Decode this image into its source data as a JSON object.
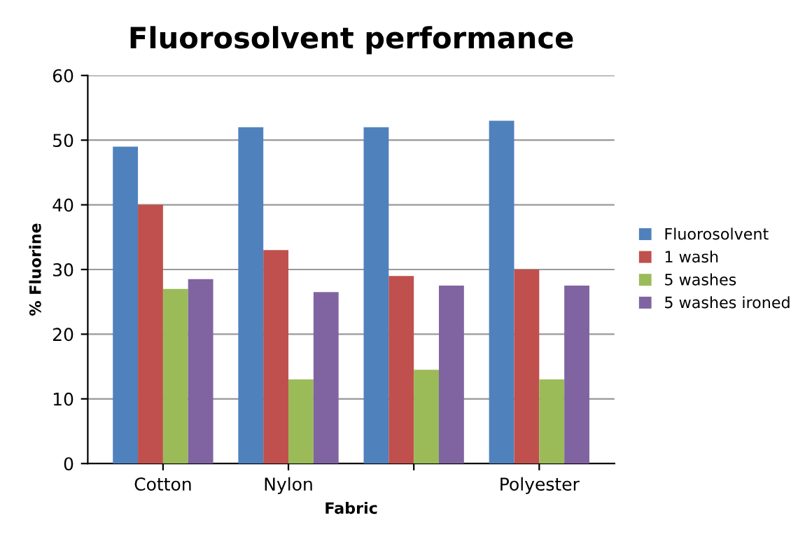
{
  "chart_data": {
    "type": "bar",
    "title": "Fluorosolvent performance",
    "xlabel": "Fabric",
    "ylabel": "% Fluorine",
    "categories": [
      "Cotton",
      "Nylon",
      null,
      "Polyester"
    ],
    "series": [
      {
        "name": "Fluorosolvent",
        "color": "#4f81bd",
        "values": [
          49,
          52,
          52,
          53
        ]
      },
      {
        "name": "1 wash",
        "color": "#c0504d",
        "values": [
          40,
          33,
          29,
          30
        ]
      },
      {
        "name": "5 washes",
        "color": "#9bbb59",
        "values": [
          27,
          13,
          14.5,
          13
        ]
      },
      {
        "name": "5 washes ironed",
        "color": "#8064a2",
        "values": [
          28.5,
          26.5,
          27.5,
          27.5
        ]
      }
    ],
    "ylim": [
      0,
      60
    ],
    "yticks": [
      0,
      10,
      20,
      30,
      40,
      50,
      60
    ],
    "grid": "y",
    "legend": "right"
  }
}
